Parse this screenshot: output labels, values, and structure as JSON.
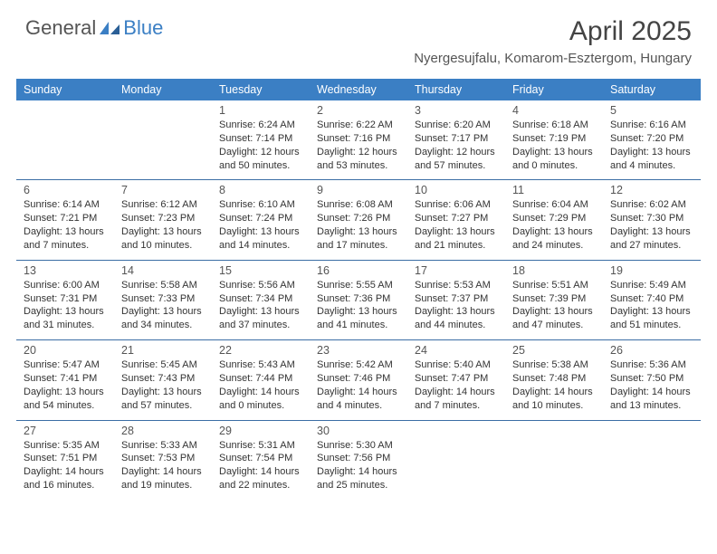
{
  "logo": {
    "part1": "General",
    "part2": "Blue"
  },
  "title": "April 2025",
  "location": "Nyergesujfalu, Komarom-Esztergom, Hungary",
  "colors": {
    "header_bg": "#3b7fc4",
    "header_text": "#ffffff",
    "week_divider": "#3b6ea5",
    "daynum": "#555555",
    "detail_text": "#333333",
    "title_text": "#444444",
    "logo_gray": "#555555",
    "logo_blue": "#3b7fc4"
  },
  "day_headers": [
    "Sunday",
    "Monday",
    "Tuesday",
    "Wednesday",
    "Thursday",
    "Friday",
    "Saturday"
  ],
  "weeks": [
    [
      {
        "n": "",
        "sr": "",
        "ss": "",
        "dl": ""
      },
      {
        "n": "",
        "sr": "",
        "ss": "",
        "dl": ""
      },
      {
        "n": "1",
        "sr": "Sunrise: 6:24 AM",
        "ss": "Sunset: 7:14 PM",
        "dl": "Daylight: 12 hours and 50 minutes."
      },
      {
        "n": "2",
        "sr": "Sunrise: 6:22 AM",
        "ss": "Sunset: 7:16 PM",
        "dl": "Daylight: 12 hours and 53 minutes."
      },
      {
        "n": "3",
        "sr": "Sunrise: 6:20 AM",
        "ss": "Sunset: 7:17 PM",
        "dl": "Daylight: 12 hours and 57 minutes."
      },
      {
        "n": "4",
        "sr": "Sunrise: 6:18 AM",
        "ss": "Sunset: 7:19 PM",
        "dl": "Daylight: 13 hours and 0 minutes."
      },
      {
        "n": "5",
        "sr": "Sunrise: 6:16 AM",
        "ss": "Sunset: 7:20 PM",
        "dl": "Daylight: 13 hours and 4 minutes."
      }
    ],
    [
      {
        "n": "6",
        "sr": "Sunrise: 6:14 AM",
        "ss": "Sunset: 7:21 PM",
        "dl": "Daylight: 13 hours and 7 minutes."
      },
      {
        "n": "7",
        "sr": "Sunrise: 6:12 AM",
        "ss": "Sunset: 7:23 PM",
        "dl": "Daylight: 13 hours and 10 minutes."
      },
      {
        "n": "8",
        "sr": "Sunrise: 6:10 AM",
        "ss": "Sunset: 7:24 PM",
        "dl": "Daylight: 13 hours and 14 minutes."
      },
      {
        "n": "9",
        "sr": "Sunrise: 6:08 AM",
        "ss": "Sunset: 7:26 PM",
        "dl": "Daylight: 13 hours and 17 minutes."
      },
      {
        "n": "10",
        "sr": "Sunrise: 6:06 AM",
        "ss": "Sunset: 7:27 PM",
        "dl": "Daylight: 13 hours and 21 minutes."
      },
      {
        "n": "11",
        "sr": "Sunrise: 6:04 AM",
        "ss": "Sunset: 7:29 PM",
        "dl": "Daylight: 13 hours and 24 minutes."
      },
      {
        "n": "12",
        "sr": "Sunrise: 6:02 AM",
        "ss": "Sunset: 7:30 PM",
        "dl": "Daylight: 13 hours and 27 minutes."
      }
    ],
    [
      {
        "n": "13",
        "sr": "Sunrise: 6:00 AM",
        "ss": "Sunset: 7:31 PM",
        "dl": "Daylight: 13 hours and 31 minutes."
      },
      {
        "n": "14",
        "sr": "Sunrise: 5:58 AM",
        "ss": "Sunset: 7:33 PM",
        "dl": "Daylight: 13 hours and 34 minutes."
      },
      {
        "n": "15",
        "sr": "Sunrise: 5:56 AM",
        "ss": "Sunset: 7:34 PM",
        "dl": "Daylight: 13 hours and 37 minutes."
      },
      {
        "n": "16",
        "sr": "Sunrise: 5:55 AM",
        "ss": "Sunset: 7:36 PM",
        "dl": "Daylight: 13 hours and 41 minutes."
      },
      {
        "n": "17",
        "sr": "Sunrise: 5:53 AM",
        "ss": "Sunset: 7:37 PM",
        "dl": "Daylight: 13 hours and 44 minutes."
      },
      {
        "n": "18",
        "sr": "Sunrise: 5:51 AM",
        "ss": "Sunset: 7:39 PM",
        "dl": "Daylight: 13 hours and 47 minutes."
      },
      {
        "n": "19",
        "sr": "Sunrise: 5:49 AM",
        "ss": "Sunset: 7:40 PM",
        "dl": "Daylight: 13 hours and 51 minutes."
      }
    ],
    [
      {
        "n": "20",
        "sr": "Sunrise: 5:47 AM",
        "ss": "Sunset: 7:41 PM",
        "dl": "Daylight: 13 hours and 54 minutes."
      },
      {
        "n": "21",
        "sr": "Sunrise: 5:45 AM",
        "ss": "Sunset: 7:43 PM",
        "dl": "Daylight: 13 hours and 57 minutes."
      },
      {
        "n": "22",
        "sr": "Sunrise: 5:43 AM",
        "ss": "Sunset: 7:44 PM",
        "dl": "Daylight: 14 hours and 0 minutes."
      },
      {
        "n": "23",
        "sr": "Sunrise: 5:42 AM",
        "ss": "Sunset: 7:46 PM",
        "dl": "Daylight: 14 hours and 4 minutes."
      },
      {
        "n": "24",
        "sr": "Sunrise: 5:40 AM",
        "ss": "Sunset: 7:47 PM",
        "dl": "Daylight: 14 hours and 7 minutes."
      },
      {
        "n": "25",
        "sr": "Sunrise: 5:38 AM",
        "ss": "Sunset: 7:48 PM",
        "dl": "Daylight: 14 hours and 10 minutes."
      },
      {
        "n": "26",
        "sr": "Sunrise: 5:36 AM",
        "ss": "Sunset: 7:50 PM",
        "dl": "Daylight: 14 hours and 13 minutes."
      }
    ],
    [
      {
        "n": "27",
        "sr": "Sunrise: 5:35 AM",
        "ss": "Sunset: 7:51 PM",
        "dl": "Daylight: 14 hours and 16 minutes."
      },
      {
        "n": "28",
        "sr": "Sunrise: 5:33 AM",
        "ss": "Sunset: 7:53 PM",
        "dl": "Daylight: 14 hours and 19 minutes."
      },
      {
        "n": "29",
        "sr": "Sunrise: 5:31 AM",
        "ss": "Sunset: 7:54 PM",
        "dl": "Daylight: 14 hours and 22 minutes."
      },
      {
        "n": "30",
        "sr": "Sunrise: 5:30 AM",
        "ss": "Sunset: 7:56 PM",
        "dl": "Daylight: 14 hours and 25 minutes."
      },
      {
        "n": "",
        "sr": "",
        "ss": "",
        "dl": ""
      },
      {
        "n": "",
        "sr": "",
        "ss": "",
        "dl": ""
      },
      {
        "n": "",
        "sr": "",
        "ss": "",
        "dl": ""
      }
    ]
  ]
}
